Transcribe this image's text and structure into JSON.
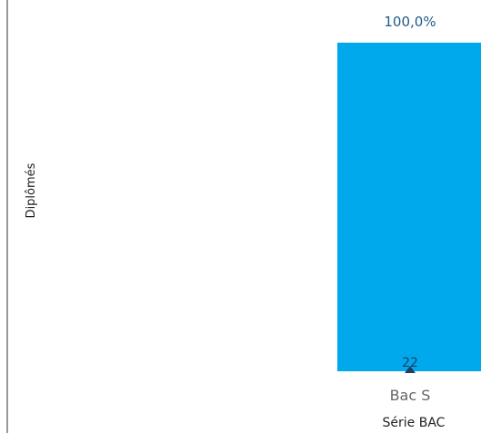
{
  "chart_data": {
    "type": "bar",
    "categories": [
      "Bac S"
    ],
    "series": [
      {
        "values": [
          22
        ],
        "percent_labels": [
          "100,0%"
        ],
        "count_labels": [
          "22"
        ]
      }
    ],
    "xlabel": "Série BAC",
    "ylabel": "Diplômés",
    "ylim": [
      0,
      22
    ],
    "grid": false,
    "colors": {
      "bar": "#00a9ec",
      "percent_label": "#1f5b8a",
      "count_label": "#1f3f66",
      "marker": "#1f3f66"
    }
  }
}
